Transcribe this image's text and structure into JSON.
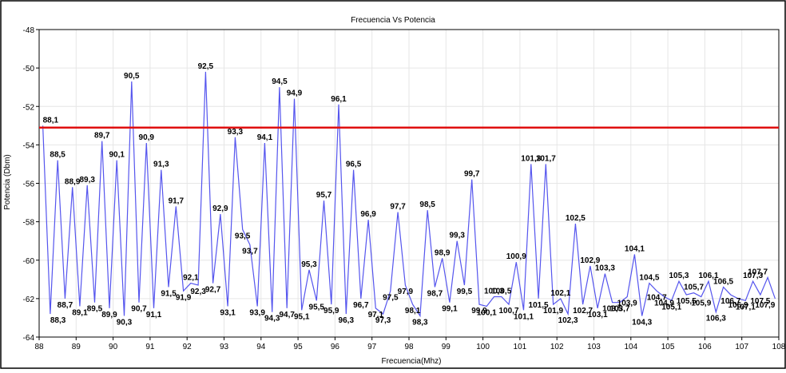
{
  "chart_data": {
    "type": "line",
    "title": "Frecuencia Vs Potencia",
    "xlabel": "Frecuencia(Mhz)",
    "ylabel": "Potencia (Dbm)",
    "xlim": [
      88,
      108
    ],
    "ylim": [
      -64,
      -48
    ],
    "xticks": [
      88,
      89,
      90,
      91,
      92,
      93,
      94,
      95,
      96,
      97,
      98,
      99,
      100,
      101,
      102,
      103,
      104,
      105,
      106,
      107,
      108
    ],
    "yticks": [
      -64,
      -62,
      -60,
      -58,
      -56,
      -54,
      -52,
      -50,
      -48
    ],
    "grid": true,
    "threshold": -53.1,
    "colors": {
      "series": "#5555ee",
      "threshold": "#e01010",
      "grid": "#e6e6e6"
    },
    "series": [
      {
        "points": [
          {
            "x": 88.1,
            "y": -53.0,
            "label": "88,1"
          },
          {
            "x": 88.3,
            "y": -62.8,
            "label": "88,3"
          },
          {
            "x": 88.5,
            "y": -54.8,
            "label": "88,5"
          },
          {
            "x": 88.7,
            "y": -62.0,
            "label": "88,7"
          },
          {
            "x": 88.9,
            "y": -56.2,
            "label": "88,9"
          },
          {
            "x": 89.1,
            "y": -62.4,
            "label": "89,1"
          },
          {
            "x": 89.3,
            "y": -56.1,
            "label": "89,3"
          },
          {
            "x": 89.5,
            "y": -62.2,
            "label": "89,5"
          },
          {
            "x": 89.7,
            "y": -53.8,
            "label": "89,7"
          },
          {
            "x": 89.9,
            "y": -62.5,
            "label": "89,9"
          },
          {
            "x": 90.1,
            "y": -54.8,
            "label": "90,1"
          },
          {
            "x": 90.3,
            "y": -62.9,
            "label": "90,3"
          },
          {
            "x": 90.5,
            "y": -50.7,
            "label": "90,5"
          },
          {
            "x": 90.7,
            "y": -62.2,
            "label": "90,7"
          },
          {
            "x": 90.9,
            "y": -53.9,
            "label": "90,9"
          },
          {
            "x": 91.1,
            "y": -62.5,
            "label": "91,1"
          },
          {
            "x": 91.3,
            "y": -55.3,
            "label": "91,3"
          },
          {
            "x": 91.5,
            "y": -61.4,
            "label": "91,5"
          },
          {
            "x": 91.7,
            "y": -57.2,
            "label": "91,7"
          },
          {
            "x": 91.9,
            "y": -61.6,
            "label": "91,9"
          },
          {
            "x": 92.1,
            "y": -61.2,
            "label": "92,1"
          },
          {
            "x": 92.3,
            "y": -61.3,
            "label": "92,3"
          },
          {
            "x": 92.5,
            "y": -50.2,
            "label": "92,5"
          },
          {
            "x": 92.7,
            "y": -61.2,
            "label": "92,7"
          },
          {
            "x": 92.9,
            "y": -57.6,
            "label": "92,9"
          },
          {
            "x": 93.1,
            "y": -62.4,
            "label": "93,1"
          },
          {
            "x": 93.3,
            "y": -53.6,
            "label": "93,3"
          },
          {
            "x": 93.5,
            "y": -58.4,
            "label": "93,5"
          },
          {
            "x": 93.7,
            "y": -59.2,
            "label": "93,7"
          },
          {
            "x": 93.9,
            "y": -62.4,
            "label": "93,9"
          },
          {
            "x": 94.1,
            "y": -53.9,
            "label": "94,1"
          },
          {
            "x": 94.3,
            "y": -62.7,
            "label": "94,3"
          },
          {
            "x": 94.5,
            "y": -51.0,
            "label": "94,5"
          },
          {
            "x": 94.7,
            "y": -62.5,
            "label": "94,7"
          },
          {
            "x": 94.9,
            "y": -51.6,
            "label": "94,9"
          },
          {
            "x": 95.1,
            "y": -62.6,
            "label": "95,1"
          },
          {
            "x": 95.3,
            "y": -60.5,
            "label": "95,3"
          },
          {
            "x": 95.5,
            "y": -62.1,
            "label": "95,5"
          },
          {
            "x": 95.7,
            "y": -56.9,
            "label": "95,7"
          },
          {
            "x": 95.9,
            "y": -62.3,
            "label": "95,9"
          },
          {
            "x": 96.1,
            "y": -51.9,
            "label": "96,1"
          },
          {
            "x": 96.3,
            "y": -62.8,
            "label": "96,3"
          },
          {
            "x": 96.5,
            "y": -55.3,
            "label": "96,5"
          },
          {
            "x": 96.7,
            "y": -62.0,
            "label": "96,7"
          },
          {
            "x": 96.9,
            "y": -57.9,
            "label": "96,9"
          },
          {
            "x": 97.1,
            "y": -62.5,
            "label": "97,1"
          },
          {
            "x": 97.3,
            "y": -62.8,
            "label": "97,3"
          },
          {
            "x": 97.5,
            "y": -61.6,
            "label": "97,5"
          },
          {
            "x": 97.7,
            "y": -57.5,
            "label": "97,7"
          },
          {
            "x": 97.9,
            "y": -61.3,
            "label": "97,9"
          },
          {
            "x": 98.1,
            "y": -62.3,
            "label": "98,1"
          },
          {
            "x": 98.3,
            "y": -62.9,
            "label": "98,3"
          },
          {
            "x": 98.5,
            "y": -57.4,
            "label": "98,5"
          },
          {
            "x": 98.7,
            "y": -61.4,
            "label": "98,7"
          },
          {
            "x": 98.9,
            "y": -59.9,
            "label": "98,9"
          },
          {
            "x": 99.1,
            "y": -62.2,
            "label": "99,1"
          },
          {
            "x": 99.3,
            "y": -59.0,
            "label": "99,3"
          },
          {
            "x": 99.5,
            "y": -61.3,
            "label": "99,5"
          },
          {
            "x": 99.7,
            "y": -55.8,
            "label": "99,7"
          },
          {
            "x": 99.9,
            "y": -62.3,
            "label": "99,9"
          },
          {
            "x": 100.1,
            "y": -62.4,
            "label": "100,1"
          },
          {
            "x": 100.3,
            "y": -61.9,
            "label": "100,3"
          },
          {
            "x": 100.5,
            "y": -61.9,
            "label": "100,5"
          },
          {
            "x": 100.7,
            "y": -62.3,
            "label": "100,7"
          },
          {
            "x": 100.9,
            "y": -60.1,
            "label": "100,9"
          },
          {
            "x": 101.1,
            "y": -62.6,
            "label": "101,1"
          },
          {
            "x": 101.3,
            "y": -55.0,
            "label": "101,3"
          },
          {
            "x": 101.5,
            "y": -62.0,
            "label": "101,5"
          },
          {
            "x": 101.7,
            "y": -55.0,
            "label": "101,7"
          },
          {
            "x": 101.9,
            "y": -62.3,
            "label": "101,9"
          },
          {
            "x": 102.1,
            "y": -62.0,
            "label": "102,1"
          },
          {
            "x": 102.3,
            "y": -62.8,
            "label": "102,3"
          },
          {
            "x": 102.5,
            "y": -58.1,
            "label": "102,5"
          },
          {
            "x": 102.7,
            "y": -62.3,
            "label": "102,7"
          },
          {
            "x": 102.9,
            "y": -60.3,
            "label": "102,9"
          },
          {
            "x": 103.1,
            "y": -62.5,
            "label": "103,1"
          },
          {
            "x": 103.3,
            "y": -60.7,
            "label": "103,3"
          },
          {
            "x": 103.5,
            "y": -62.2,
            "label": "103,5"
          },
          {
            "x": 103.7,
            "y": -62.2,
            "label": "103,7"
          },
          {
            "x": 103.9,
            "y": -61.9,
            "label": "103,9"
          },
          {
            "x": 104.1,
            "y": -59.7,
            "label": "104,1"
          },
          {
            "x": 104.3,
            "y": -62.9,
            "label": "104,3"
          },
          {
            "x": 104.5,
            "y": -61.2,
            "label": "104,5"
          },
          {
            "x": 104.7,
            "y": -61.6,
            "label": "104,7"
          },
          {
            "x": 104.9,
            "y": -61.9,
            "label": "104,9"
          },
          {
            "x": 105.1,
            "y": -62.1,
            "label": "105,1"
          },
          {
            "x": 105.3,
            "y": -61.1,
            "label": "105,3"
          },
          {
            "x": 105.5,
            "y": -61.8,
            "label": "105,5"
          },
          {
            "x": 105.7,
            "y": -61.7,
            "label": "105,7"
          },
          {
            "x": 105.9,
            "y": -61.9,
            "label": "105,9"
          },
          {
            "x": 106.1,
            "y": -61.1,
            "label": "106,1"
          },
          {
            "x": 106.3,
            "y": -62.7,
            "label": "106,3"
          },
          {
            "x": 106.5,
            "y": -61.4,
            "label": "106,5"
          },
          {
            "x": 106.7,
            "y": -61.8,
            "label": "106,7"
          },
          {
            "x": 106.9,
            "y": -62.0,
            "label": "106,9"
          },
          {
            "x": 107.1,
            "y": -62.1,
            "label": "107,1"
          },
          {
            "x": 107.3,
            "y": -61.1,
            "label": "107,3"
          },
          {
            "x": 107.5,
            "y": -61.8,
            "label": "107,5"
          },
          {
            "x": 107.7,
            "y": -60.9,
            "label": "107,7"
          },
          {
            "x": 107.9,
            "y": -62.0,
            "label": "107,9"
          }
        ]
      }
    ]
  }
}
